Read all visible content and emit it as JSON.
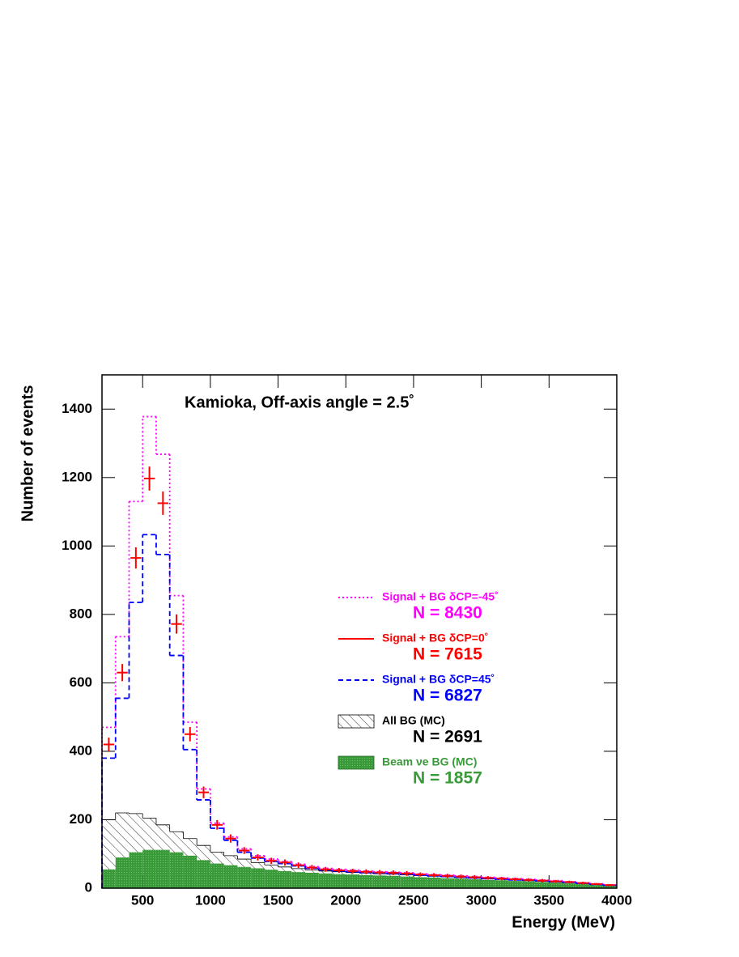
{
  "chart_data": {
    "type": "histogram",
    "title": "Kamioka, Off-axis angle = 2.5˚",
    "x_label": "Energy (MeV)",
    "y_label": "Number of events",
    "bins": [
      200,
      300,
      400,
      500,
      600,
      700,
      800,
      900,
      1000,
      1100,
      1200,
      1300,
      1400,
      1500,
      1600,
      1700,
      1800,
      1900,
      2000,
      2100,
      2200,
      2300,
      2400,
      2500,
      2600,
      2700,
      2800,
      2900,
      3000,
      3100,
      3200,
      3300,
      3400,
      3500,
      3600,
      3700,
      3800,
      3900,
      4000
    ],
    "xlim": [
      200,
      4000
    ],
    "ylim": [
      0,
      1500
    ],
    "xticks": [
      500,
      1000,
      1500,
      2000,
      2500,
      3000,
      3500,
      4000
    ],
    "yticks": [
      0,
      200,
      400,
      600,
      800,
      1000,
      1200,
      1400
    ],
    "legend_position": "right",
    "series": [
      {
        "name": "All BG  (MC)",
        "n_label": "N =  2691",
        "color": "#000000",
        "style": "hatch",
        "values": [
          200,
          220,
          218,
          205,
          185,
          165,
          145,
          125,
          105,
          95,
          85,
          75,
          68,
          62,
          57,
          53,
          50,
          48,
          46,
          44,
          42,
          41,
          39,
          37,
          35,
          33,
          31,
          29,
          27,
          26,
          24,
          22,
          20,
          18,
          16,
          13,
          10,
          7
        ]
      },
      {
        "name": "Beam νe BG (MC)",
        "n_label": "N = 1857",
        "color": "#3a9a3a",
        "style": "fill",
        "values": [
          55,
          90,
          105,
          112,
          112,
          105,
          95,
          82,
          72,
          67,
          62,
          58,
          54,
          50,
          47,
          45,
          43,
          41,
          40,
          38,
          37,
          36,
          34,
          32,
          31,
          29,
          28,
          26,
          24,
          23,
          21,
          20,
          18,
          16,
          14,
          12,
          9,
          6
        ]
      },
      {
        "name": "Signal + BG  δCP=-45˚",
        "n_label": "N =  8430",
        "color": "#ff00ff",
        "style": "dotted",
        "values": [
          470,
          735,
          1130,
          1378,
          1268,
          855,
          485,
          290,
          190,
          150,
          115,
          95,
          85,
          78,
          70,
          63,
          58,
          55,
          53,
          50,
          48,
          47,
          45,
          42,
          40,
          38,
          36,
          34,
          32,
          30,
          28,
          26,
          24,
          22,
          19,
          16,
          13,
          10
        ]
      },
      {
        "name": "Signal + BG δCP=45˚",
        "n_label": "N = 6827",
        "color": "#0000ff",
        "style": "dashed",
        "values": [
          380,
          555,
          835,
          1033,
          975,
          680,
          405,
          258,
          175,
          140,
          105,
          88,
          78,
          72,
          65,
          58,
          53,
          50,
          48,
          46,
          44,
          43,
          41,
          38,
          36,
          34,
          32,
          30,
          28,
          26,
          24,
          23,
          21,
          19,
          17,
          14,
          11,
          8
        ]
      },
      {
        "name": "Signal + BG δCP=0˚",
        "n_label": "N =  7615",
        "color": "#ff0000",
        "style": "errorbar",
        "values": [
          420,
          630,
          965,
          1197,
          1125,
          772,
          450,
          280,
          185,
          145,
          110,
          90,
          80,
          75,
          67,
          60,
          55,
          52,
          50,
          48,
          46,
          45,
          43,
          40,
          38,
          36,
          34,
          32,
          30,
          28,
          26,
          24,
          22,
          20,
          18,
          15,
          12,
          9
        ],
        "errors": [
          20,
          25,
          31,
          35,
          34,
          28,
          21,
          17,
          14,
          12,
          10,
          9,
          9,
          9,
          8,
          8,
          7,
          7,
          7,
          7,
          7,
          7,
          7,
          6,
          6,
          6,
          6,
          6,
          5,
          5,
          5,
          5,
          5,
          4,
          4,
          4,
          3,
          3
        ]
      }
    ]
  }
}
